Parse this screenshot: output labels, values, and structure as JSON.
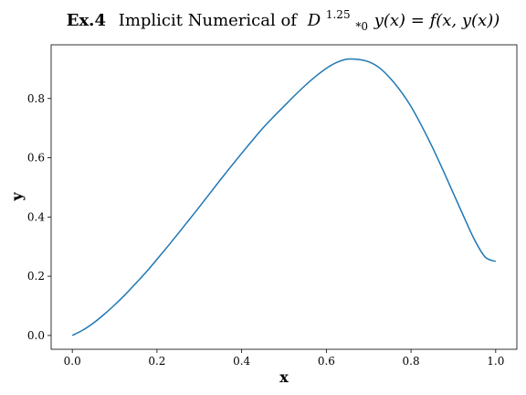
{
  "chart_data": {
    "type": "line",
    "title_bold": "Ex.4",
    "title_text": "Implicit Numerical of",
    "title_math": {
      "operator": "D",
      "superscript": "1.25",
      "subscript": "*0",
      "equation": "y(x) = f(x, y(x))"
    },
    "xlabel": "x",
    "ylabel": "y",
    "xlim": [
      -0.05,
      1.05
    ],
    "ylim": [
      -0.0467,
      0.9814
    ],
    "xticks": [
      0.0,
      0.2,
      0.4,
      0.6,
      0.8,
      1.0
    ],
    "xtick_labels": [
      "0.0",
      "0.2",
      "0.4",
      "0.6",
      "0.8",
      "1.0"
    ],
    "yticks": [
      0.0,
      0.2,
      0.4,
      0.6,
      0.8
    ],
    "ytick_labels": [
      "0.0",
      "0.2",
      "0.4",
      "0.6",
      "0.8"
    ],
    "grid": false,
    "series": [
      {
        "name": "y(x)",
        "color": "#1f77b4",
        "x": [
          0.0,
          0.025,
          0.05,
          0.075,
          0.1,
          0.125,
          0.15,
          0.175,
          0.2,
          0.225,
          0.25,
          0.275,
          0.3,
          0.325,
          0.35,
          0.375,
          0.4,
          0.425,
          0.45,
          0.475,
          0.5,
          0.525,
          0.55,
          0.575,
          0.6,
          0.625,
          0.65,
          0.675,
          0.7,
          0.725,
          0.75,
          0.775,
          0.8,
          0.825,
          0.85,
          0.875,
          0.9,
          0.925,
          0.95,
          0.975,
          1.0
        ],
        "y": [
          0.0,
          0.018,
          0.042,
          0.071,
          0.103,
          0.138,
          0.176,
          0.215,
          0.257,
          0.3,
          0.344,
          0.389,
          0.434,
          0.48,
          0.526,
          0.571,
          0.615,
          0.658,
          0.7,
          0.738,
          0.774,
          0.81,
          0.844,
          0.875,
          0.902,
          0.922,
          0.933,
          0.932,
          0.924,
          0.904,
          0.87,
          0.826,
          0.773,
          0.708,
          0.637,
          0.56,
          0.48,
          0.4,
          0.323,
          0.265,
          0.25
        ]
      }
    ]
  }
}
